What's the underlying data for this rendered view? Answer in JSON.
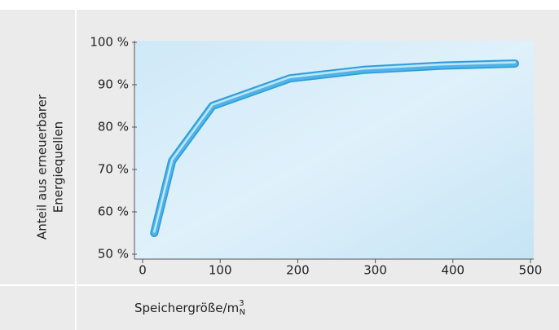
{
  "chart_data": {
    "type": "line",
    "ylabel": [
      "Anteil aus erneuerbarer",
      "Energiequellen"
    ],
    "xlabel": {
      "text": "Speichergröße/m",
      "sup": "3",
      "sub": "N"
    },
    "x": [
      15,
      38,
      90,
      190,
      285,
      385,
      480
    ],
    "series": [
      {
        "color": "#4fb3e6",
        "values": [
          55,
          72,
          85,
          91.5,
          93.5,
          94.5,
          95
        ]
      }
    ],
    "xlim": [
      0,
      500
    ],
    "xticks": [
      0,
      100,
      200,
      300,
      400,
      500
    ],
    "ylim": [
      50,
      100
    ],
    "yticks": [
      {
        "value": 50,
        "label": "50 %"
      },
      {
        "value": 60,
        "label": "60 %"
      },
      {
        "value": 70,
        "label": "70 %"
      },
      {
        "value": 80,
        "label": "80 %"
      },
      {
        "value": 90,
        "label": "90 %"
      },
      {
        "value": 100,
        "label": "100 %"
      }
    ]
  }
}
